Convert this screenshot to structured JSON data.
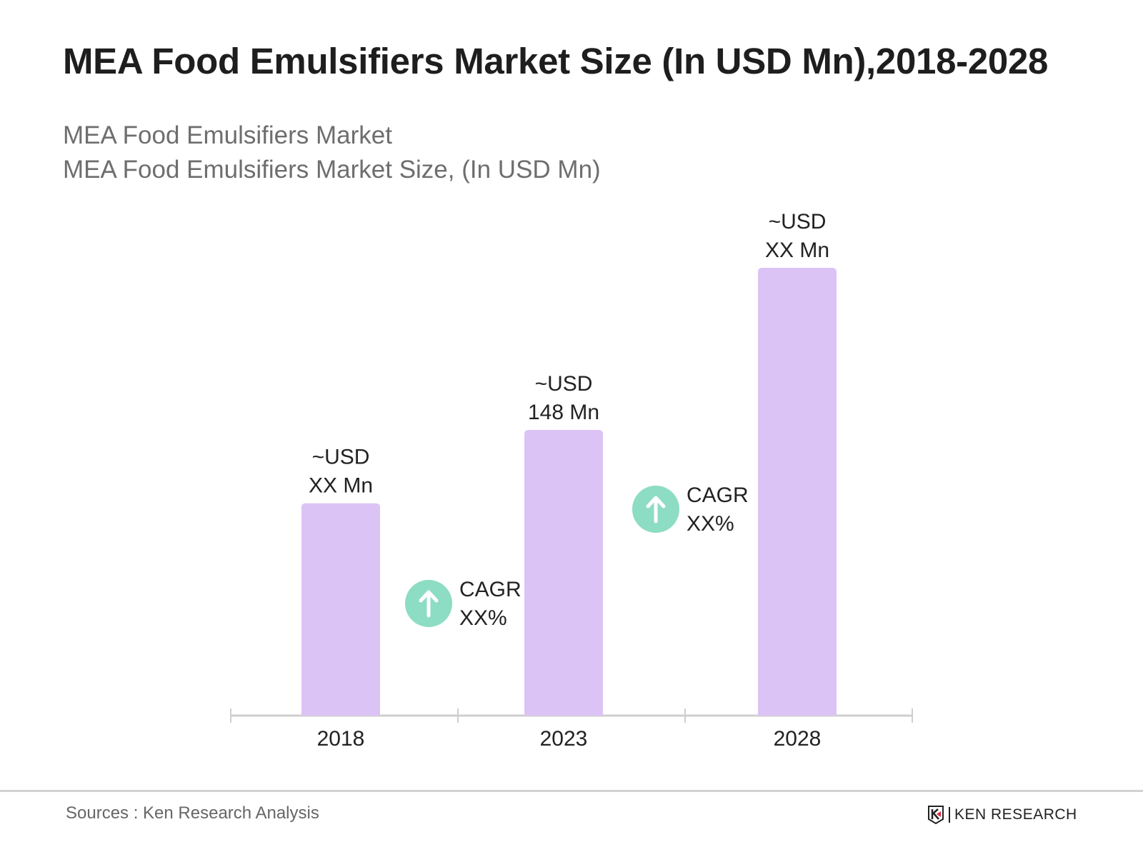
{
  "header": {
    "title": "MEA Food Emulsifiers Market Size (In USD Mn),2018-2028",
    "subtitle_1": "MEA Food Emulsifiers Market",
    "subtitle_2": "MEA Food Emulsifiers Market Size, (In USD Mn)"
  },
  "chart_data": {
    "type": "bar",
    "categories": [
      "2018",
      "2023",
      "2028"
    ],
    "values": [
      110,
      148,
      232
    ],
    "data_labels": [
      {
        "line1": "~USD",
        "line2": "XX Mn"
      },
      {
        "line1": "~USD",
        "line2": "148 Mn"
      },
      {
        "line1": "~USD",
        "line2": "XX Mn"
      }
    ],
    "annotations": [
      {
        "line1": "CAGR",
        "line2": "XX%",
        "between": [
          "2018",
          "2023"
        ],
        "icon": "arrow-up-circle-icon"
      },
      {
        "line1": "CAGR",
        "line2": "XX%",
        "between": [
          "2023",
          "2028"
        ],
        "icon": "arrow-up-circle-icon"
      }
    ],
    "xlabel": "",
    "ylabel": "",
    "grid": false,
    "colors": {
      "bar": "#dcc3f5",
      "cagr_circle": "#8ddcc4",
      "axis": "#cfcfcf"
    }
  },
  "footer": {
    "sources": "Sources : Ken Research Analysis",
    "logo_text": "KEN RESEARCH"
  }
}
